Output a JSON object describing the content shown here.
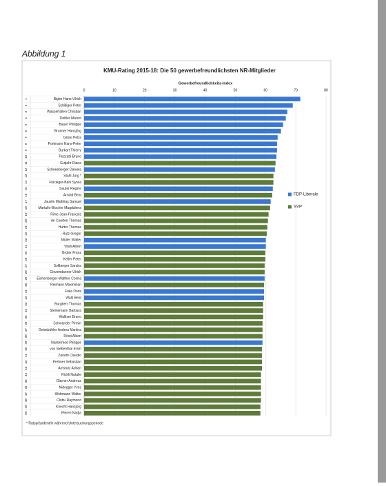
{
  "caption": "Abbildung 1",
  "chart_data": {
    "type": "bar",
    "orientation": "horizontal",
    "title": "KMU-Rating 2015-18: Die 50 gewerbefreundlichsten NR-Mitglieder",
    "x_label": "Gewerbefreundlichkeits-Index",
    "ranks": [
      1,
      2,
      3,
      4,
      5,
      6,
      7,
      8,
      9,
      10,
      11,
      12,
      13,
      14,
      15,
      16,
      17,
      18,
      19,
      20,
      21,
      22,
      23,
      24,
      25,
      26,
      27,
      28,
      29,
      30,
      31,
      32,
      33,
      34,
      35,
      36,
      37,
      38,
      39,
      40,
      41,
      42,
      43,
      44,
      45,
      46,
      47,
      48,
      49,
      50
    ],
    "categories": [
      "Bigler Hans-Ulrich",
      "Schilliger Peter",
      "Wasserfallen Christian",
      "Dobler Marcel",
      "Bauer Philippe",
      "Brunner Hansjörg",
      "Gössi Petra",
      "Portmann Hans-Peter",
      "Burkart Thierry",
      "Pezzatti Bruno",
      "Gutjahr Diana",
      "Schneeberger Daniela",
      "Stahl Jürg *",
      "Flückiger-Bäni Sylvia",
      "Sauter Regine",
      "Arnold Beat",
      "Jauslin Matthias Samuel",
      "Martullo-Blocher Magdalena",
      "Rime Jean-François",
      "de Courten Thomas",
      "Hurter Thomas",
      "Rutz Gregor",
      "Müller Walter",
      "Vitali Albert",
      "Grüter Franz",
      "Keller Peter",
      "Sollberger Sandra",
      "Giezendanner Ulrich",
      "Eichenberger-Walther Corina",
      "Reimann Maximilian",
      "Fiala Doris",
      "Walti Beat",
      "Burgherr Thomas",
      "Steinemann Barbara",
      "Walliser Bruno",
      "Schwander Pirmin",
      "Geissbühler Andrea Martina",
      "Rösti Albert",
      "Nantermod Philippe",
      "von Siebenthal Erich",
      "Zanetti Claudio",
      "Frehner Sebastian",
      "Amstutz Adrian",
      "Rickli Natalie",
      "Glarner Andreas",
      "Nidegger Yves",
      "Wobmann Walter",
      "Clottu Raymond",
      "Knecht Hansjörg",
      "Pieren Nadja"
    ],
    "values": [
      71.5,
      69,
      67.2,
      66.7,
      65.8,
      65.1,
      64,
      63.8,
      63.8,
      63.6,
      63.3,
      63.1,
      62.6,
      62.6,
      62.4,
      62.2,
      61.7,
      61.5,
      61,
      60.8,
      60.6,
      60.4,
      60.1,
      60.1,
      59.9,
      59.9,
      59.7,
      59.7,
      59.7,
      59.5,
      59.5,
      59.5,
      59.2,
      59.2,
      59.2,
      59,
      59,
      59,
      59,
      58.8,
      58.8,
      58.8,
      58.8,
      58.5,
      58.5,
      58.5,
      58.5,
      58.5,
      58.3,
      58.3
    ],
    "bar_colors": [
      "#3a78d0",
      "#3a78d0",
      "#3a78d0",
      "#3a78d0",
      "#3a78d0",
      "#3a78d0",
      "#3a78d0",
      "#3a78d0",
      "#3a78d0",
      "#3a78d0",
      "#5e7b3a",
      "#3a78d0",
      "#5e7b3a",
      "#5e7b3a",
      "#3a78d0",
      "#5e7b3a",
      "#3a78d0",
      "#5e7b3a",
      "#5e7b3a",
      "#5e7b3a",
      "#5e7b3a",
      "#5e7b3a",
      "#3a78d0",
      "#3a78d0",
      "#5e7b3a",
      "#5e7b3a",
      "#5e7b3a",
      "#5e7b3a",
      "#3a78d0",
      "#5e7b3a",
      "#3a78d0",
      "#3a78d0",
      "#5e7b3a",
      "#5e7b3a",
      "#5e7b3a",
      "#5e7b3a",
      "#5e7b3a",
      "#5e7b3a",
      "#3a78d0",
      "#5e7b3a",
      "#5e7b3a",
      "#5e7b3a",
      "#5e7b3a",
      "#5e7b3a",
      "#5e7b3a",
      "#5e7b3a",
      "#5e7b3a",
      "#5e7b3a",
      "#5e7b3a",
      "#5e7b3a"
    ],
    "legend": [
      {
        "name": "FDP-Liberale",
        "color": "#3a78d0"
      },
      {
        "name": "SVP",
        "color": "#5e7b3a"
      }
    ],
    "xlim": [
      0,
      80
    ],
    "xticks": [
      0,
      10,
      20,
      30,
      40,
      50,
      60,
      70,
      80
    ],
    "grid": true,
    "footnote": "* Ratspräsident/in während Untersuchungsperiode"
  }
}
